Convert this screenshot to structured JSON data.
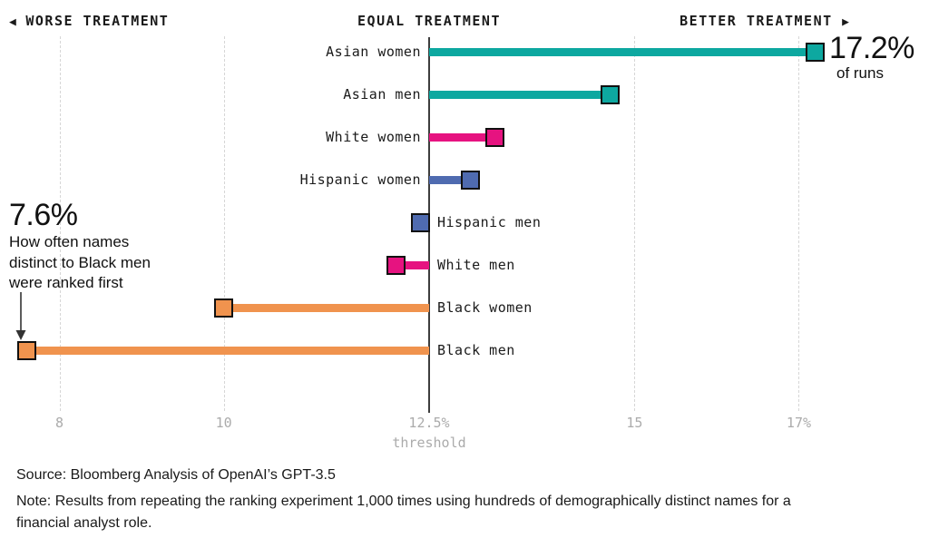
{
  "header": {
    "worse": "WORSE TREATMENT",
    "equal": "EQUAL TREATMENT",
    "better": "BETTER TREATMENT"
  },
  "icons": {
    "left_arrow": "◀",
    "right_arrow": "▶"
  },
  "colors": {
    "teal": "#0da8a0",
    "pink": "#e61380",
    "blue": "#4f6bb0",
    "orange": "#f0934e",
    "grid": "#d6d6d6",
    "axis_line": "#3d3d3d",
    "axis_text": "#ababab",
    "marker_border": "#111111"
  },
  "chart_data": {
    "type": "bar",
    "variant": "diverging-horizontal",
    "title": "",
    "xlabel": "threshold",
    "units": "%",
    "baseline": 12.5,
    "xlim": [
      7.3,
      18.2
    ],
    "grid": "vertical-dashed",
    "categories": [
      "Asian women",
      "Asian men",
      "White women",
      "Hispanic women",
      "Hispanic men",
      "White men",
      "Black women",
      "Black men"
    ],
    "values": [
      17.2,
      14.7,
      13.3,
      13.0,
      12.4,
      12.1,
      10.0,
      7.6
    ],
    "row_colors": [
      "teal",
      "teal",
      "pink",
      "blue",
      "blue",
      "pink",
      "orange",
      "orange"
    ],
    "ticks": [
      {
        "value": 8,
        "label": "8"
      },
      {
        "value": 10,
        "label": "10"
      },
      {
        "value": 12.5,
        "label": "12.5%"
      },
      {
        "value": 15,
        "label": "15"
      },
      {
        "value": 17,
        "label": "17%"
      }
    ]
  },
  "annotations": {
    "max": {
      "value_label": "17.2%",
      "sub_label": "of runs"
    },
    "min": {
      "value_label": "7.6%",
      "line1": "How often names",
      "line2": "distinct to Black men",
      "line3": "were ranked first"
    }
  },
  "footer": {
    "source": "Source: Bloomberg Analysis of OpenAI’s GPT-3.5",
    "note": "Note: Results from repeating the ranking experiment 1,000 times using hundreds of demographically distinct names for a financial analyst role."
  }
}
